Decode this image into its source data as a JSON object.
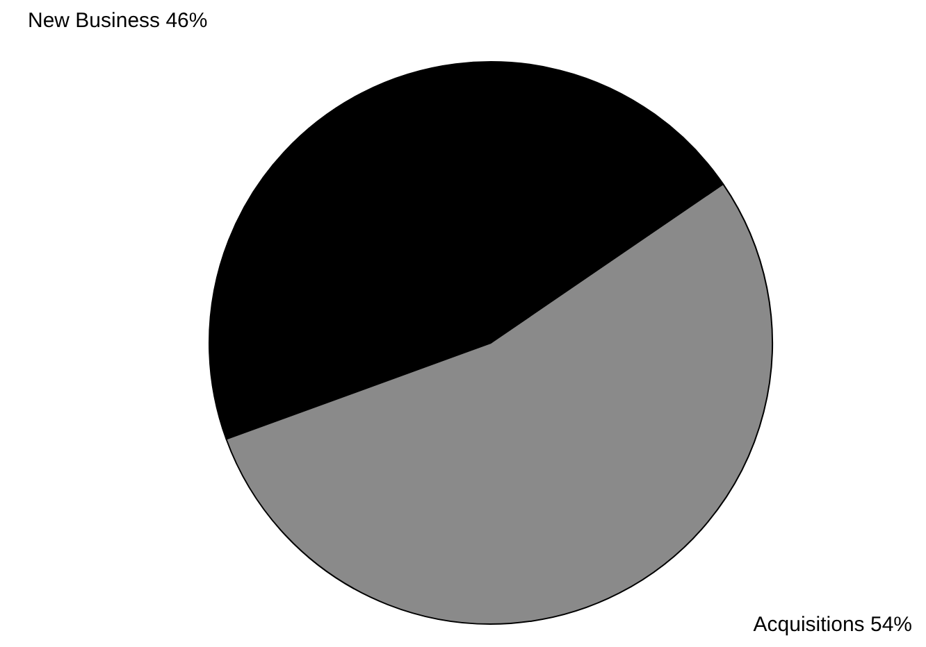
{
  "chart_data": {
    "type": "pie",
    "categories": [
      "New Business",
      "Acquisitions"
    ],
    "values": [
      46,
      54
    ],
    "colors": [
      "#000000",
      "#8a8a8a"
    ],
    "value_labels": [
      "46%",
      "54%"
    ],
    "legend": false
  }
}
